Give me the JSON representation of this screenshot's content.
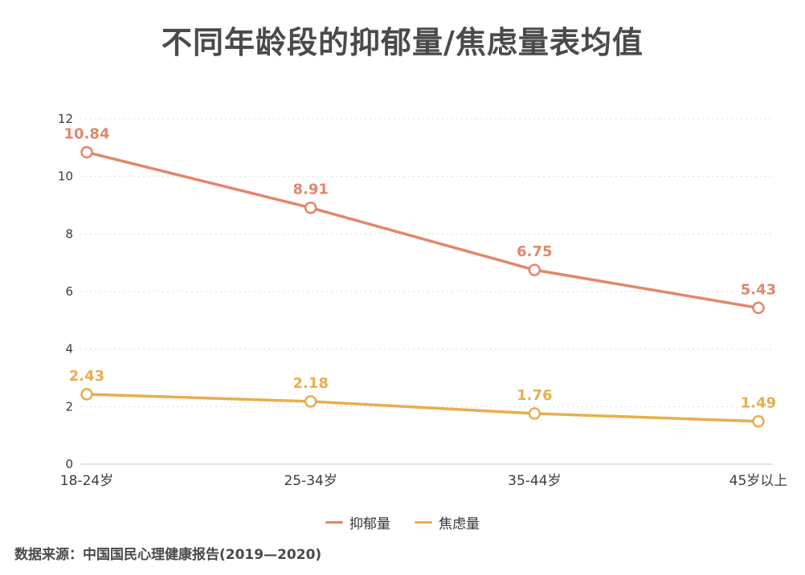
{
  "title": "不同年龄段的抑郁量/焦虑量表均值",
  "source": "数据来源：中国国民心理健康报告(2019—2020)",
  "legend": [
    {
      "label": "抑郁量",
      "color": "#E2876B"
    },
    {
      "label": "焦虑量",
      "color": "#E8AE4D"
    }
  ],
  "colors": {
    "depression_line": "#E2876B",
    "anxiety_line": "#E8AE4D",
    "title_text": "#4A4A4A",
    "axis_text": "#3D3D3D",
    "gridline": "#DCDCDC",
    "axis_line": "#C9C9C9"
  },
  "chart_data": {
    "type": "line",
    "title": "不同年龄段的抑郁量/焦虑量表均值",
    "categories": [
      "18-24岁",
      "25-34岁",
      "35-44岁",
      "45岁以上"
    ],
    "series": [
      {
        "name": "抑郁量",
        "color": "#E2876B",
        "values": [
          10.84,
          8.91,
          6.75,
          5.43
        ]
      },
      {
        "name": "焦虑量",
        "color": "#E8AE4D",
        "values": [
          2.43,
          2.18,
          1.76,
          1.49
        ]
      }
    ],
    "xlabel": "",
    "ylabel": "",
    "ylim": [
      0,
      12
    ],
    "yticks": [
      0,
      2,
      4,
      6,
      8,
      10,
      12
    ],
    "grid": "horizontal-dotted",
    "legend_position": "bottom",
    "markers": "open-circle",
    "data_labels": true,
    "source_note": "数据来源：中国国民心理健康报告(2019—2020)"
  }
}
